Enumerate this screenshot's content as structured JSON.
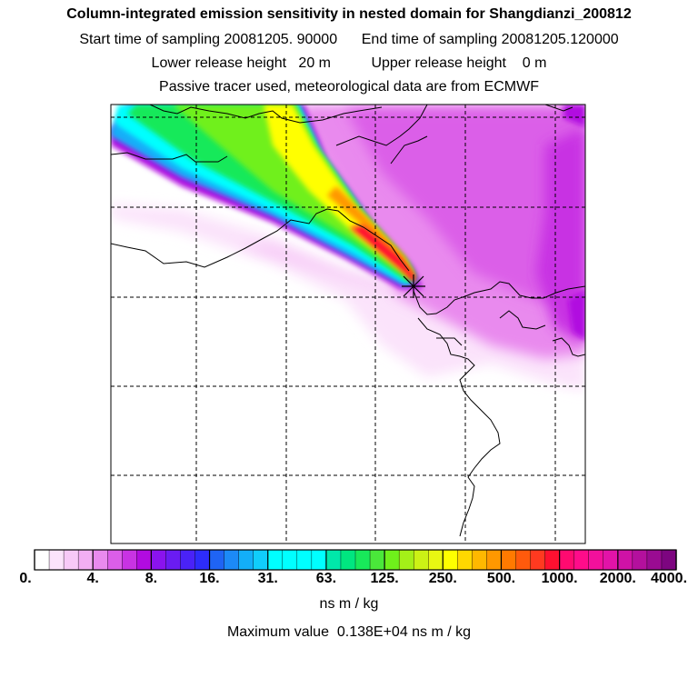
{
  "header": {
    "title": "Column-integrated emission sensitivity in nested domain for Shangdianzi_200812",
    "sampling_line": "Start time of sampling 20081205. 90000      End time of sampling 20081205.120000",
    "height_line": "Lower release height   20 m          Upper release height    0 m",
    "tracer_line": "Passive tracer used, meteorological data are from ECMWF"
  },
  "colorbar": {
    "ticks": [
      "0.",
      "4.",
      "8.",
      "16.",
      "31.",
      "63.",
      "125.",
      "250.",
      "500.",
      "1000.",
      "2000.",
      "4000."
    ],
    "units": "ns m / kg",
    "colors": [
      "#ffffff",
      "#fbe3fb",
      "#f7c9f7",
      "#f2aef3",
      "#e98aee",
      "#db5ee8",
      "#c833e3",
      "#b10be0",
      "#8a13ee",
      "#6a1cf2",
      "#4a22f7",
      "#2d2cfb",
      "#1f64f4",
      "#1c8af7",
      "#13aef8",
      "#10cdfb",
      "#00ffff",
      "#00ffff",
      "#00ffff",
      "#00ffff",
      "#00e8aa",
      "#00e680",
      "#18e95a",
      "#4ae83a",
      "#6ff01b",
      "#a4f018",
      "#ccf215",
      "#e8f712",
      "#ffff00",
      "#ffd800",
      "#ffb800",
      "#ff9800",
      "#ff7a00",
      "#ff5a0c",
      "#ff3a20",
      "#ff1030",
      "#ff0a70",
      "#ff0c8a",
      "#f2109c",
      "#e213a8",
      "#cf12a6",
      "#b4109d",
      "#9a0b92",
      "#7d0580"
    ]
  },
  "footer": {
    "max_value": "Maximum value  0.138E+04 ns m / kg"
  },
  "map": {
    "receptor_marker": "station-cross-icon"
  }
}
